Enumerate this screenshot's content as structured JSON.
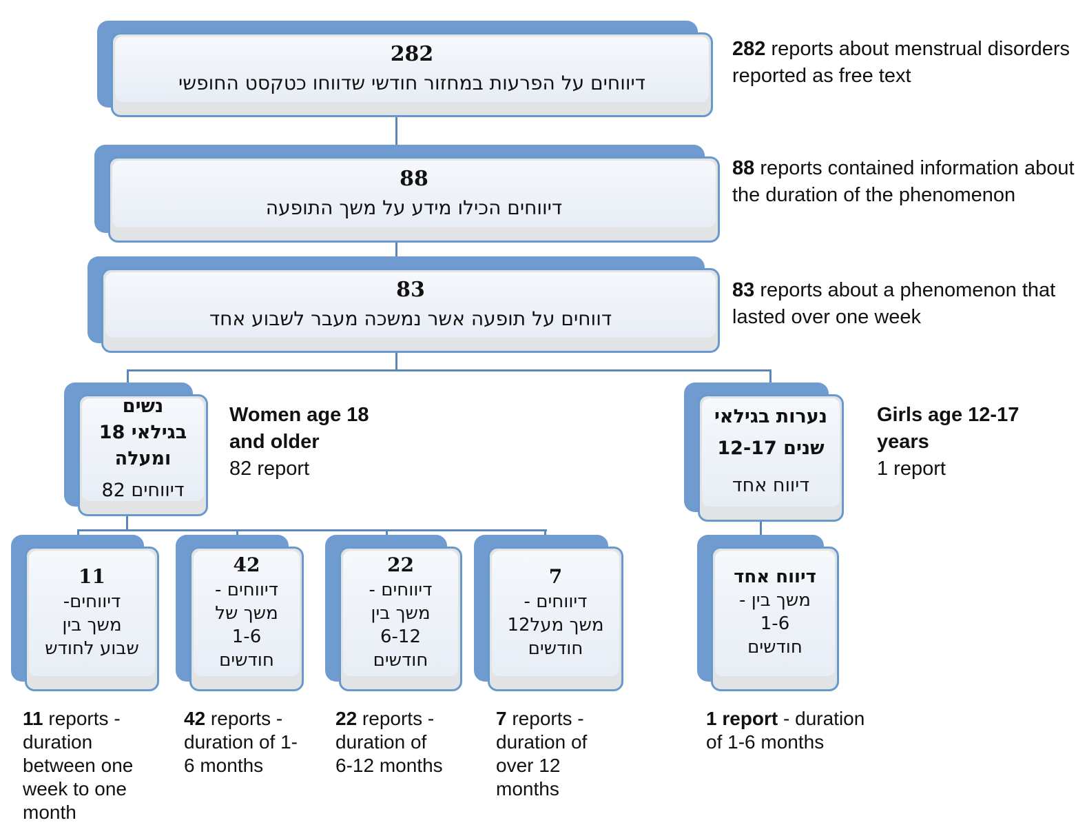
{
  "palette": {
    "node_blue": "#6f9bd1",
    "node_border": "#6699cc",
    "node_gray": "#e2e3e5",
    "node_fill": "#f2f5fa",
    "connector": "#5b87ba",
    "text": "#111111"
  },
  "boxes": {
    "b282": {
      "lines": [
        {
          "t": "282",
          "b": 1
        },
        {
          "t": "דיווחים על הפרעות במחזור חודשי שדווחו כטקסט החופשי",
          "dir": "rtl"
        }
      ]
    },
    "b88": {
      "lines": [
        {
          "t": "88",
          "b": 1
        },
        {
          "t": "דיווחים הכילו מידע על משך התופעה",
          "dir": "rtl"
        }
      ]
    },
    "b83": {
      "lines": [
        {
          "t": "83",
          "b": 1
        },
        {
          "t": "דווחים על תופעה אשר נמשכה מעבר לשבוע אחד",
          "dir": "rtl"
        }
      ]
    },
    "women": {
      "lines": [
        {
          "t": "נשים",
          "b": 1,
          "dir": "rtl"
        },
        {
          "t": "בגילאי 18",
          "b": 1,
          "dir": "ltr"
        },
        {
          "t": "ומעלה",
          "b": 1,
          "dir": "rtl"
        },
        {
          "t": "82 דיווחים",
          "dir": "ltr",
          "last": 1
        }
      ]
    },
    "girls": {
      "lines": [
        {
          "t": "נערות בגילאי",
          "b": 1,
          "dir": "rtl"
        },
        {
          "t": "12-17 שנים",
          "b": 1,
          "dir": "ltr"
        },
        {
          "t": "דיווח אחד",
          "dir": "rtl",
          "last": 1
        }
      ]
    },
    "d11": {
      "lines": [
        {
          "t": "11",
          "b": 1
        },
        {
          "t": "דיווחים-",
          "dir": "rtl"
        },
        {
          "t": "משך בין",
          "dir": "rtl"
        },
        {
          "t": "שבוע לחודש",
          "dir": "rtl"
        }
      ]
    },
    "d42": {
      "lines": [
        {
          "t": "42",
          "b": 1
        },
        {
          "t": "דיווחים -",
          "dir": "rtl"
        },
        {
          "t": "משך של",
          "dir": "rtl"
        },
        {
          "t": "1-6",
          "dir": "ltr"
        },
        {
          "t": "חודשים",
          "dir": "rtl"
        }
      ]
    },
    "d22": {
      "lines": [
        {
          "t": "22",
          "b": 1
        },
        {
          "t": "דיווחים -",
          "dir": "rtl"
        },
        {
          "t": "משך בין",
          "dir": "rtl"
        },
        {
          "t": "6-12",
          "dir": "ltr"
        },
        {
          "t": "חודשים",
          "dir": "rtl"
        }
      ]
    },
    "d7": {
      "lines": [
        {
          "t": "7",
          "b": 1
        },
        {
          "t": "דיווחים -",
          "dir": "rtl"
        },
        {
          "t": "משך מעל12",
          "dir": "rtl"
        },
        {
          "t": "חודשים",
          "dir": "rtl"
        }
      ]
    },
    "d1": {
      "lines": [
        {
          "t": "דיווח אחד",
          "b": 1,
          "dir": "rtl"
        },
        {
          "t": "- משך בין",
          "dir": "ltr"
        },
        {
          "t": "1-6",
          "dir": "ltr"
        },
        {
          "t": "חודשים",
          "dir": "rtl"
        }
      ]
    }
  },
  "annotations": {
    "a282": {
      "bold": "282",
      "rest": " reports about menstrual disorders reported as free text"
    },
    "a88": {
      "bold": "88",
      "rest": " reports contained information about the duration of the phenomenon"
    },
    "a83": {
      "bold": "83",
      "rest": " reports about a phenomenon that lasted over one week"
    },
    "women": {
      "bold": "Women age 18 and older",
      "rest": "82 report"
    },
    "girls": {
      "bold": "Girls age 12-17 years",
      "rest": "1 report"
    },
    "l11": {
      "bold": "11",
      "rest": " reports - duration between one week to one month"
    },
    "l42": {
      "bold": "42",
      "rest": " reports - duration of 1-6 months"
    },
    "l22": {
      "bold": "22",
      "rest": " reports - duration of 6-12 months"
    },
    "l7": {
      "bold": "7",
      "rest": " reports - duration of over 12 months"
    },
    "l1": {
      "bold": "1 report",
      "rest": " - duration of 1-6 months"
    }
  }
}
